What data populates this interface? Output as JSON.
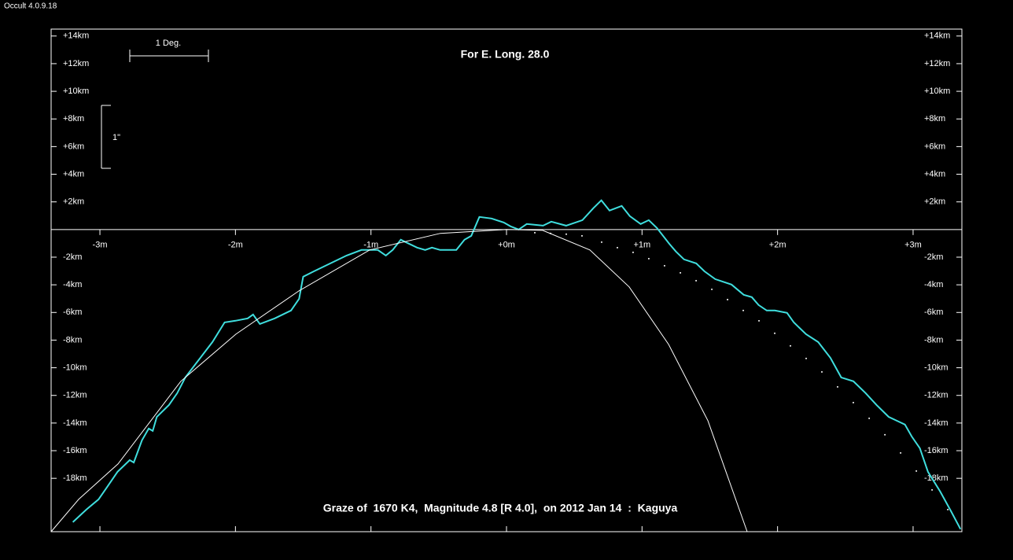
{
  "chart_data": {
    "type": "line",
    "app_title": "Occult 4.0.9.18",
    "title": "Graze of  1670 K4,  Magnitude 4.8 [R 4.0],  on 2012 Jan 14  :  Kaguya",
    "subtitle": "For E. Long. 28.0",
    "annotations": [
      "1 Deg.",
      "1\""
    ],
    "xlim": [
      -3.36,
      3.36
    ],
    "ylim": [
      -21.86,
      14.5
    ],
    "xticks": [
      {
        "value": -3,
        "label": "-3m"
      },
      {
        "value": -2,
        "label": "-2m"
      },
      {
        "value": -1,
        "label": "-1m"
      },
      {
        "value": 0,
        "label": "+0m"
      },
      {
        "value": 1,
        "label": "+1m"
      },
      {
        "value": 2,
        "label": "+2m"
      },
      {
        "value": 3,
        "label": "+3m"
      }
    ],
    "yticks": [
      {
        "value": 14,
        "label": "+14km"
      },
      {
        "value": 12,
        "label": "+12km"
      },
      {
        "value": 10,
        "label": "+10km"
      },
      {
        "value": 8,
        "label": "+8km"
      },
      {
        "value": 6,
        "label": "+6km"
      },
      {
        "value": 4,
        "label": "+4km"
      },
      {
        "value": 2,
        "label": "+2km"
      },
      {
        "value": -2,
        "label": "-2km"
      },
      {
        "value": -4,
        "label": "-4km"
      },
      {
        "value": -6,
        "label": "-6km"
      },
      {
        "value": -8,
        "label": "-8km"
      },
      {
        "value": -10,
        "label": "-10km"
      },
      {
        "value": -12,
        "label": "-12km"
      },
      {
        "value": -14,
        "label": "-14km"
      },
      {
        "value": -16,
        "label": "-16km"
      },
      {
        "value": -18,
        "label": "-18km"
      }
    ],
    "series": [
      {
        "color": "#3fdede",
        "style": "line",
        "x": [
          -3.2,
          -3.1,
          -3.01,
          -2.95,
          -2.87,
          -2.78,
          -2.75,
          -2.69,
          -2.64,
          -2.61,
          -2.58,
          -2.49,
          -2.43,
          -2.37,
          -2.29,
          -2.17,
          -2.08,
          -2.0,
          -1.91,
          -1.87,
          -1.82,
          -1.71,
          -1.59,
          -1.53,
          -1.5,
          -1.42,
          -1.3,
          -1.18,
          -1.07,
          -0.95,
          -0.89,
          -0.84,
          -0.78,
          -0.72,
          -0.66,
          -0.6,
          -0.55,
          -0.49,
          -0.37,
          -0.31,
          -0.26,
          -0.2,
          -0.11,
          -0.02,
          0.03,
          0.09,
          0.15,
          0.27,
          0.33,
          0.44,
          0.56,
          0.64,
          0.7,
          0.76,
          0.85,
          0.91,
          0.99,
          1.05,
          1.11,
          1.2,
          1.25,
          1.31,
          1.4,
          1.46,
          1.54,
          1.66,
          1.75,
          1.81,
          1.86,
          1.92,
          1.98,
          2.07,
          2.12,
          2.21,
          2.3,
          2.39,
          2.47,
          2.56,
          2.65,
          2.73,
          2.82,
          2.94,
          2.99,
          3.05,
          3.11,
          3.2,
          3.28,
          3.35
        ],
        "values": [
          -21.17,
          -20.26,
          -19.52,
          -18.67,
          -17.53,
          -16.68,
          -16.85,
          -15.25,
          -14.4,
          -14.57,
          -13.55,
          -12.69,
          -11.84,
          -10.7,
          -9.68,
          -8.14,
          -6.72,
          -6.6,
          -6.43,
          -6.15,
          -6.83,
          -6.43,
          -5.86,
          -5.01,
          -3.41,
          -3.02,
          -2.45,
          -1.88,
          -1.48,
          -1.48,
          -1.88,
          -1.48,
          -0.74,
          -1.02,
          -1.31,
          -1.48,
          -1.31,
          -1.48,
          -1.48,
          -0.74,
          -0.46,
          0.91,
          0.8,
          0.51,
          0.23,
          0,
          0.4,
          0.28,
          0.57,
          0.28,
          0.68,
          1.54,
          2.11,
          1.37,
          1.71,
          0.97,
          0.4,
          0.68,
          0.11,
          -1.02,
          -1.59,
          -2.16,
          -2.45,
          -3.02,
          -3.59,
          -3.98,
          -4.72,
          -4.89,
          -5.46,
          -5.86,
          -5.86,
          -6.03,
          -6.72,
          -7.57,
          -8.14,
          -9.28,
          -10.7,
          -10.98,
          -11.84,
          -12.69,
          -13.55,
          -14.11,
          -14.97,
          -15.82,
          -17.53,
          -18.95,
          -20.38,
          -21.68
        ]
      },
      {
        "color": "#ffffff",
        "style": "line",
        "x": [
          -3.36,
          -3.157,
          -2.867,
          -2.403,
          -1.997,
          -1.532,
          -1.01,
          -0.488,
          0,
          0.267,
          0.615,
          0.905,
          1.196,
          1.486,
          1.776
        ],
        "values": [
          -21.86,
          -19.52,
          -16.96,
          -10.98,
          -7.57,
          -4.44,
          -1.48,
          -0.28,
          0,
          -0.06,
          -1.48,
          -4.15,
          -8.31,
          -13.83,
          -21.86
        ]
      },
      {
        "color": "#ffffff",
        "style": "dots",
        "x": [
          0.209,
          0.325,
          0.441,
          0.557,
          0.702,
          0.818,
          0.934,
          1.05,
          1.166,
          1.283,
          1.399,
          1.515,
          1.631,
          1.747,
          1.863,
          1.979,
          2.095,
          2.211,
          2.327,
          2.443,
          2.559,
          2.676,
          2.792,
          2.908,
          3.024,
          3.14,
          3.256
        ],
        "values": [
          -0.23,
          -0.28,
          -0.34,
          -0.46,
          -0.91,
          -1.31,
          -1.65,
          -2.11,
          -2.62,
          -3.13,
          -3.7,
          -4.33,
          -5.07,
          -5.86,
          -6.6,
          -7.51,
          -8.42,
          -9.33,
          -10.3,
          -11.38,
          -12.52,
          -13.66,
          -14.85,
          -16.16,
          -17.47,
          -18.84,
          -20.26
        ]
      }
    ]
  }
}
